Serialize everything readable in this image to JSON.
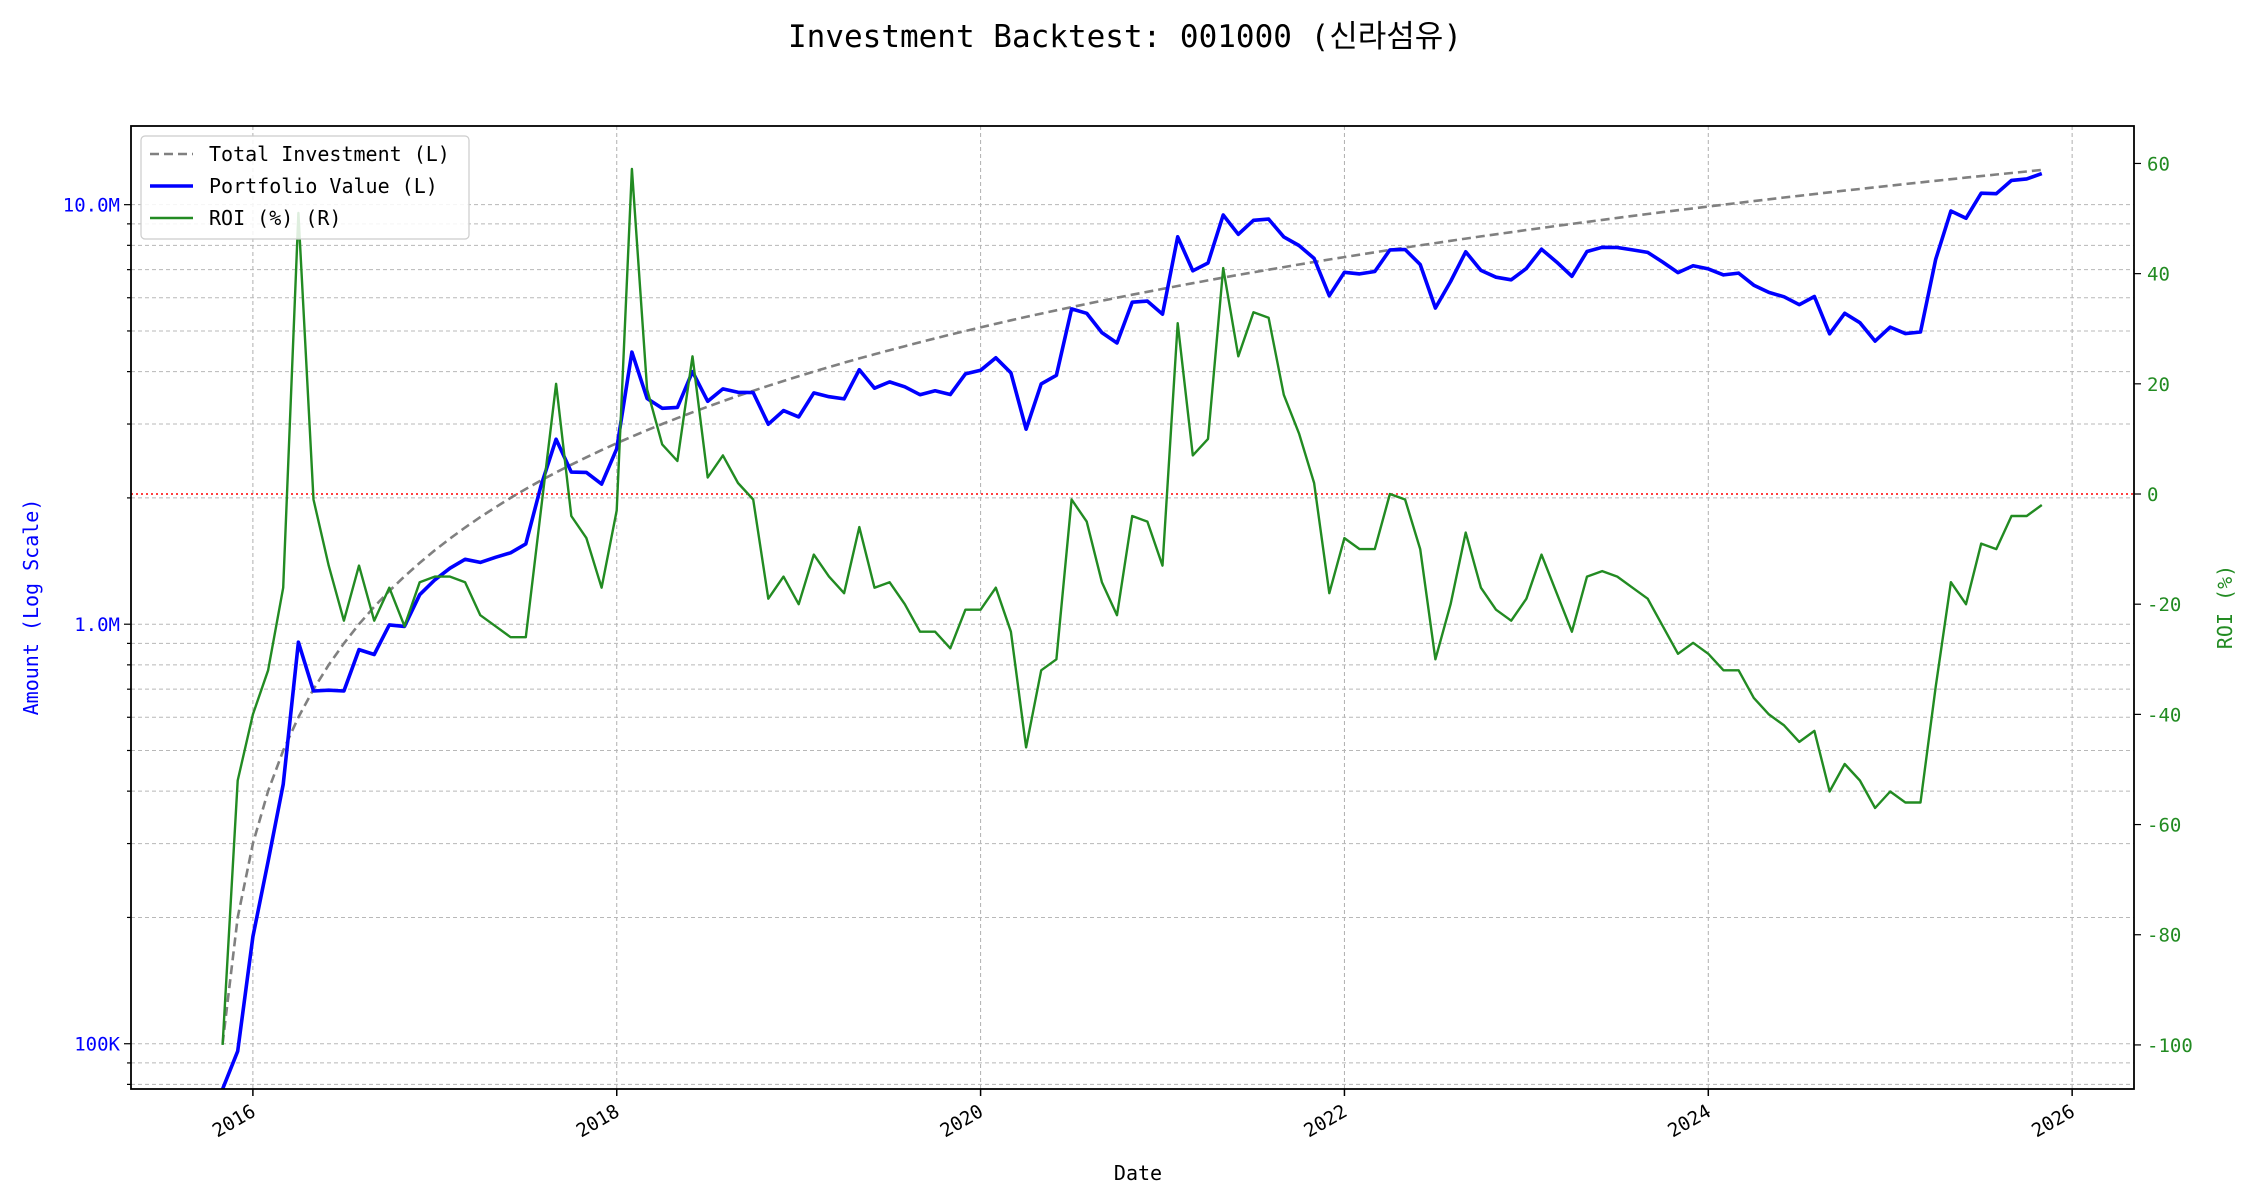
{
  "chart_data": {
    "type": "line",
    "title": "Investment Backtest: 001000 (신라섬유)",
    "xlabel": "Date",
    "ylabel_left": "Amount (Log Scale)",
    "ylabel_right": "ROI (%)",
    "x_start": "2015-11",
    "x_frequency": "monthly",
    "x_ticks": [
      "2016",
      "2018",
      "2020",
      "2022",
      "2024",
      "2026"
    ],
    "y_left_ticks": [
      {
        "value": 100000,
        "label": "100K"
      },
      {
        "value": 1000000,
        "label": "1.0M"
      },
      {
        "value": 10000000,
        "label": "10.0M"
      }
    ],
    "y_left_scale": "log",
    "y_left_lim": [
      78000,
      15400000
    ],
    "y_right_ticks": [
      -100,
      -80,
      -60,
      -40,
      -20,
      0,
      20,
      40,
      60
    ],
    "y_right_lim": [
      -108,
      66.8
    ],
    "x_lim": [
      2015.33,
      2026.34
    ],
    "grid": true,
    "legend_position": "top-left",
    "reference_line": {
      "axis": "right",
      "value": 0,
      "color": "#ff0000",
      "style": "dotted"
    },
    "monthly_contribution": 100000,
    "series": [
      {
        "name": "Total Investment (L)",
        "axis": "left",
        "color": "#808080",
        "style": "dashed",
        "rule": "monthly_contribution * (month_index + 1)"
      },
      {
        "name": "Portfolio Value (L)",
        "axis": "left",
        "color": "#0000ff",
        "style": "solid",
        "rule": "total_investment * (1 + roi / 100)"
      },
      {
        "name": "ROI (%) (R)",
        "axis": "right",
        "color": "#228b22",
        "style": "solid",
        "values": [
          -100,
          -52,
          -40,
          -32,
          -17,
          51,
          -1,
          -13,
          -23,
          -13,
          -23,
          -17,
          -24,
          -16,
          -15,
          -15,
          -16,
          -22,
          -24,
          -26,
          -26,
          -3,
          20,
          -4,
          -8,
          -17,
          -3,
          59,
          19,
          9,
          6,
          25,
          3,
          7,
          2,
          -1,
          -19,
          -15,
          -20,
          -11,
          -15,
          -18,
          -6,
          -17,
          -16,
          -20,
          -25,
          -25,
          -28,
          -21,
          -21,
          -17,
          -25,
          -46,
          -32,
          -30,
          -1,
          -5,
          -16,
          -22,
          -4,
          -5,
          -13,
          31,
          7,
          10,
          41,
          25,
          33,
          32,
          18,
          11,
          2,
          -18,
          -8,
          -10,
          -10,
          0,
          -1,
          -10,
          -30,
          -20,
          -7,
          -17,
          -21,
          -23,
          -19,
          -11,
          -18,
          -25,
          -15,
          -14,
          -15,
          -17,
          -19,
          -24,
          -29,
          -27,
          -29,
          -32,
          -32,
          -37,
          -40,
          -42,
          -45,
          -43,
          -54,
          -49,
          -52,
          -57,
          -54,
          -56,
          -56,
          -35,
          -16,
          -20,
          -9,
          -10,
          -4,
          -4,
          -2
        ]
      }
    ],
    "colors": {
      "left_axis": "#0000ff",
      "right_axis": "#228b22"
    }
  }
}
